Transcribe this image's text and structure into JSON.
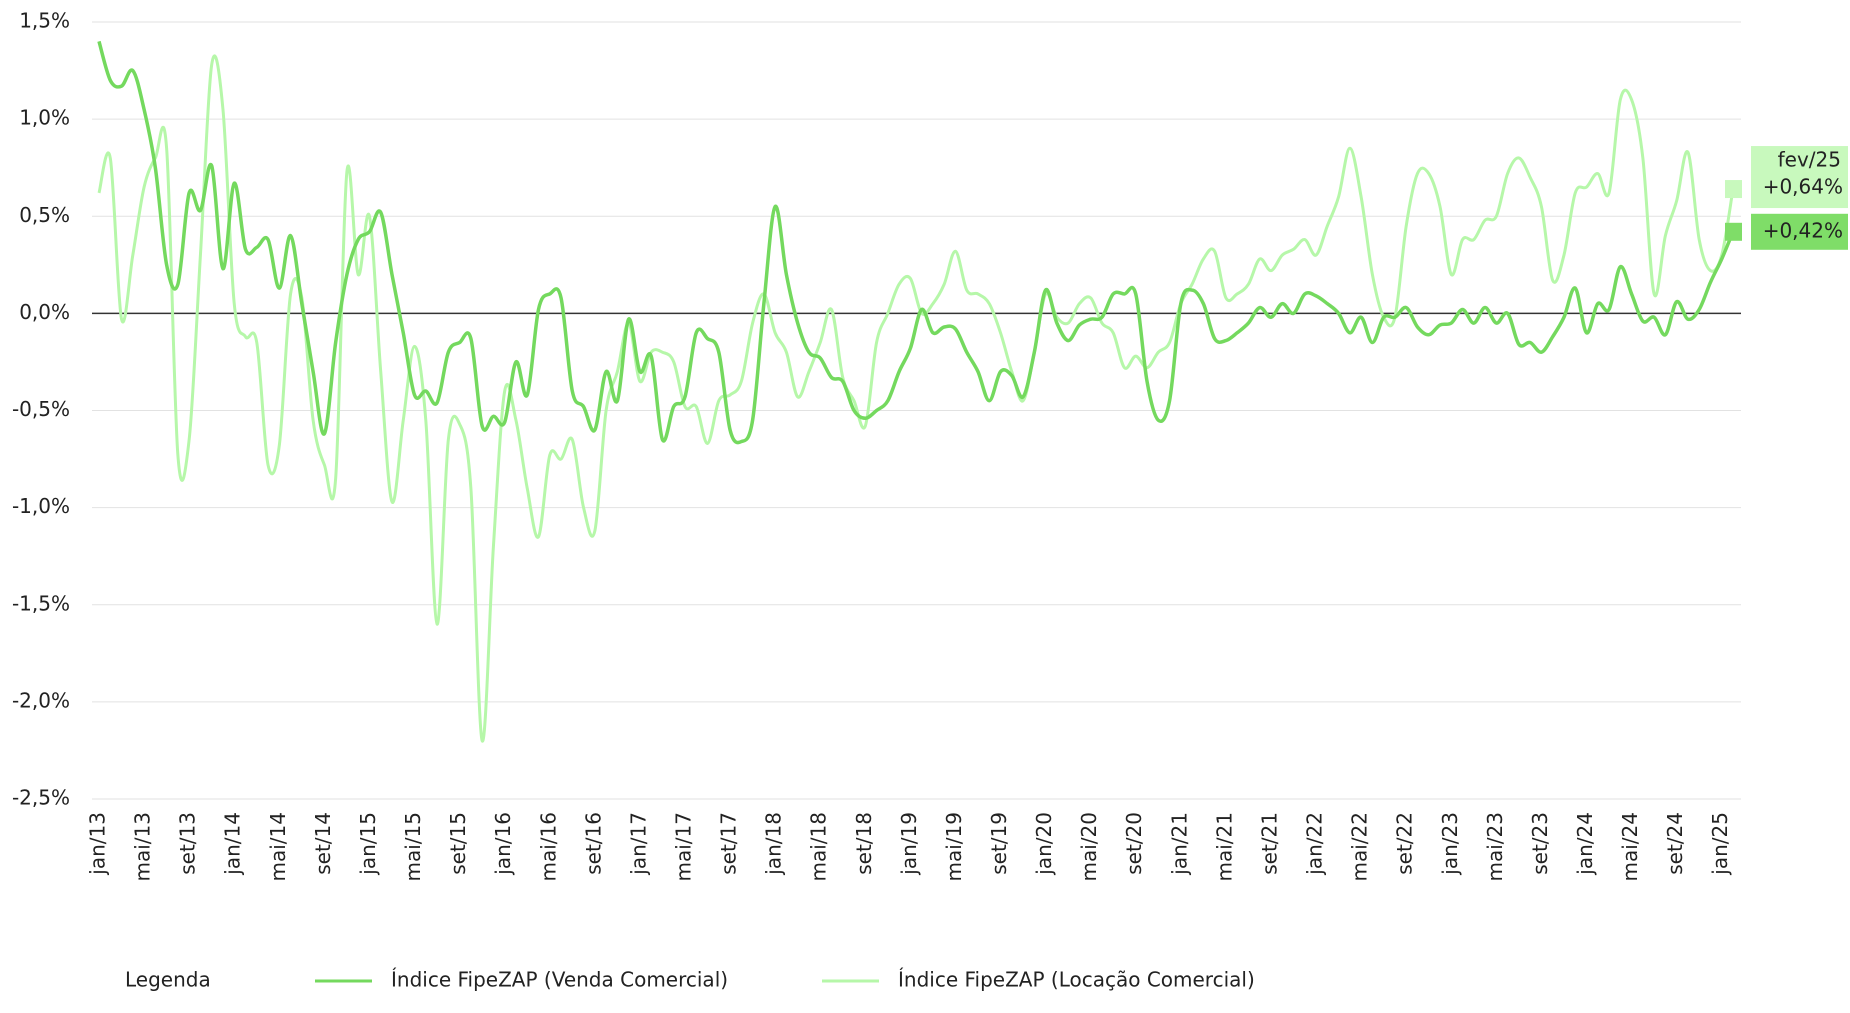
{
  "chart_data": {
    "type": "line",
    "categories": [
      "jan/13",
      null,
      null,
      null,
      "mai/13",
      null,
      null,
      null,
      "set/13",
      null,
      null,
      null,
      "jan/14",
      null,
      null,
      null,
      "mai/14",
      null,
      null,
      null,
      "set/14",
      null,
      null,
      null,
      "jan/15",
      null,
      null,
      null,
      "mai/15",
      null,
      null,
      null,
      "set/15",
      null,
      null,
      null,
      "jan/16",
      null,
      null,
      null,
      "mai/16",
      null,
      null,
      null,
      "set/16",
      null,
      null,
      null,
      "jan/17",
      null,
      null,
      null,
      "mai/17",
      null,
      null,
      null,
      "set/17",
      null,
      null,
      null,
      "jan/18",
      null,
      null,
      null,
      "mai/18",
      null,
      null,
      null,
      "set/18",
      null,
      null,
      null,
      "jan/19",
      null,
      null,
      null,
      "mai/19",
      null,
      null,
      null,
      "set/19",
      null,
      null,
      null,
      "jan/20",
      null,
      null,
      null,
      "mai/20",
      null,
      null,
      null,
      "set/20",
      null,
      null,
      null,
      "jan/21",
      null,
      null,
      null,
      "mai/21",
      null,
      null,
      null,
      "set/21",
      null,
      null,
      null,
      "jan/22",
      null,
      null,
      null,
      "mai/22",
      null,
      null,
      null,
      "set/22",
      null,
      null,
      null,
      "jan/23",
      null,
      null,
      null,
      "mai/23",
      null,
      null,
      null,
      "set/23",
      null,
      null,
      null,
      "jan/24",
      null,
      null,
      null,
      "mai/24",
      null,
      null,
      null,
      "set/24",
      null,
      null,
      null,
      "jan/25",
      null
    ],
    "series": [
      {
        "name": "Índice FipeZAP (Venda Comercial)",
        "color": "#74d95e",
        "label_background": "#7fdd68",
        "end_label": "+0,42%",
        "values": [
          1.4,
          1.2,
          1.17,
          1.25,
          1.05,
          0.75,
          0.25,
          0.15,
          0.62,
          0.53,
          0.76,
          0.23,
          0.67,
          0.33,
          0.34,
          0.38,
          0.13,
          0.4,
          0.05,
          -0.3,
          -0.62,
          -0.15,
          0.2,
          0.38,
          0.42,
          0.52,
          0.2,
          -0.1,
          -0.42,
          -0.4,
          -0.46,
          -0.2,
          -0.15,
          -0.13,
          -0.58,
          -0.53,
          -0.56,
          -0.25,
          -0.42,
          0.02,
          0.1,
          0.08,
          -0.4,
          -0.48,
          -0.6,
          -0.3,
          -0.45,
          -0.03,
          -0.3,
          -0.22,
          -0.65,
          -0.48,
          -0.43,
          -0.1,
          -0.13,
          -0.2,
          -0.6,
          -0.66,
          -0.55,
          0.05,
          0.55,
          0.2,
          -0.05,
          -0.2,
          -0.23,
          -0.33,
          -0.35,
          -0.5,
          -0.54,
          -0.5,
          -0.45,
          -0.3,
          -0.18,
          0.02,
          -0.1,
          -0.07,
          -0.08,
          -0.2,
          -0.3,
          -0.45,
          -0.3,
          -0.32,
          -0.43,
          -0.2,
          0.12,
          -0.05,
          -0.14,
          -0.06,
          -0.03,
          -0.02,
          0.1,
          0.1,
          0.1,
          -0.35,
          -0.55,
          -0.45,
          0.05,
          0.12,
          0.05,
          -0.13,
          -0.14,
          -0.1,
          -0.05,
          0.03,
          -0.02,
          0.05,
          0.0,
          0.1,
          0.09,
          0.05,
          0.0,
          -0.1,
          -0.02,
          -0.15,
          -0.02,
          -0.02,
          0.03,
          -0.07,
          -0.11,
          -0.06,
          -0.05,
          0.02,
          -0.05,
          0.03,
          -0.05,
          0.0,
          -0.16,
          -0.15,
          -0.2,
          -0.12,
          -0.02,
          0.13,
          -0.1,
          0.05,
          0.02,
          0.24,
          0.1,
          -0.04,
          -0.02,
          -0.11,
          0.06,
          -0.03,
          0.02,
          0.16,
          0.28,
          0.42
        ]
      },
      {
        "name": "Índice FipeZAP (Locação Comercial)",
        "color": "#b6f7a9",
        "label_background": "#c8f9bd",
        "end_label": "+0,64%",
        "values": [
          0.62,
          0.8,
          -0.03,
          0.3,
          0.65,
          0.8,
          0.85,
          -0.73,
          -0.65,
          0.3,
          1.28,
          1.05,
          0.05,
          -0.12,
          -0.15,
          -0.78,
          -0.68,
          0.1,
          0.08,
          -0.55,
          -0.78,
          -0.85,
          0.73,
          0.2,
          0.5,
          -0.3,
          -0.97,
          -0.55,
          -0.17,
          -0.55,
          -1.6,
          -0.65,
          -0.57,
          -0.9,
          -2.2,
          -1.2,
          -0.4,
          -0.55,
          -0.9,
          -1.15,
          -0.73,
          -0.75,
          -0.65,
          -1.0,
          -1.12,
          -0.5,
          -0.3,
          -0.05,
          -0.35,
          -0.2,
          -0.2,
          -0.25,
          -0.48,
          -0.48,
          -0.67,
          -0.45,
          -0.42,
          -0.35,
          -0.05,
          0.1,
          -0.1,
          -0.2,
          -0.43,
          -0.3,
          -0.15,
          0.02,
          -0.33,
          -0.45,
          -0.58,
          -0.15,
          0.0,
          0.15,
          0.18,
          0.0,
          0.05,
          0.15,
          0.32,
          0.12,
          0.1,
          0.05,
          -0.1,
          -0.3,
          -0.45,
          -0.2,
          0.1,
          -0.02,
          -0.05,
          0.05,
          0.08,
          -0.05,
          -0.1,
          -0.28,
          -0.22,
          -0.28,
          -0.2,
          -0.15,
          0.05,
          0.15,
          0.28,
          0.32,
          0.08,
          0.1,
          0.15,
          0.28,
          0.22,
          0.3,
          0.33,
          0.38,
          0.3,
          0.45,
          0.6,
          0.85,
          0.6,
          0.2,
          -0.02,
          -0.02,
          0.45,
          0.72,
          0.72,
          0.55,
          0.2,
          0.38,
          0.38,
          0.48,
          0.5,
          0.72,
          0.8,
          0.7,
          0.55,
          0.17,
          0.3,
          0.62,
          0.65,
          0.72,
          0.62,
          1.1,
          1.1,
          0.8,
          0.1,
          0.4,
          0.58,
          0.83,
          0.38,
          0.22,
          0.3,
          0.64
        ]
      }
    ],
    "end_date": "fev/25",
    "ylim": [
      -2.5,
      1.5
    ],
    "yticks": [
      {
        "value": -2.5,
        "label": "-2,5%"
      },
      {
        "value": -2,
        "label": "-2,0%"
      },
      {
        "value": -1.5,
        "label": "-1,5%"
      },
      {
        "value": -1,
        "label": "-1,0%"
      },
      {
        "value": -0.5,
        "label": "-0,5%"
      },
      {
        "value": 0,
        "label": "0,0%"
      },
      {
        "value": 0.5,
        "label": "0,5%"
      },
      {
        "value": 1,
        "label": "1,0%"
      },
      {
        "value": 1.5,
        "label": "1,5%"
      }
    ],
    "grid": true,
    "zero_line_color": "#333333",
    "legend_title": "Legenda",
    "legend_position": "bottom"
  }
}
